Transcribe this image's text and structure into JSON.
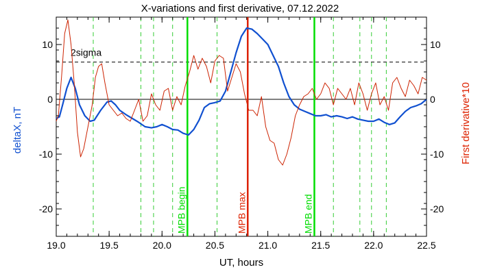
{
  "chart_data": {
    "type": "line",
    "title": "X-variations and first derivative, 07.12.2022",
    "xlabel": "UT, hours",
    "ylabel_left": "deltaX, nT",
    "ylabel_right": "First derivative*10",
    "xlim": [
      19.0,
      22.5
    ],
    "ylim": [
      -25,
      15
    ],
    "x_ticks": [
      "19.0",
      "19.5",
      "20.0",
      "20.5",
      "21.0",
      "21.5",
      "22.0",
      "22.5"
    ],
    "x_tick_values": [
      19.0,
      19.5,
      20.0,
      20.5,
      21.0,
      21.5,
      22.0,
      22.5
    ],
    "y_ticks": [
      "-20",
      "-10",
      "0",
      "10"
    ],
    "y_tick_values": [
      -20,
      -10,
      0,
      10
    ],
    "sigma_label": "2sigma",
    "sigma_level": 6.8,
    "vertical_dashed": [
      19.35,
      19.8,
      19.92,
      20.1,
      20.52,
      21.62,
      21.87,
      21.98,
      22.12
    ],
    "markers": [
      {
        "label": "MPB begin",
        "x": 20.24,
        "color": "#00dd00"
      },
      {
        "label": "MPB max",
        "x": 20.81,
        "color": "#dd2200"
      },
      {
        "label": "MPB end",
        "x": 21.44,
        "color": "#00dd00"
      }
    ],
    "series": [
      {
        "name": "deltaX, nT",
        "color": "#1050d0",
        "x": [
          19.0,
          19.03,
          19.06,
          19.1,
          19.14,
          19.18,
          19.22,
          19.27,
          19.32,
          19.36,
          19.42,
          19.48,
          19.52,
          19.56,
          19.6,
          19.66,
          19.72,
          19.78,
          19.84,
          19.9,
          19.95,
          20.0,
          20.05,
          20.1,
          20.15,
          20.2,
          20.25,
          20.3,
          20.35,
          20.4,
          20.45,
          20.5,
          20.55,
          20.6,
          20.65,
          20.7,
          20.75,
          20.8,
          20.85,
          20.9,
          20.95,
          21.0,
          21.05,
          21.1,
          21.15,
          21.2,
          21.25,
          21.3,
          21.35,
          21.4,
          21.45,
          21.5,
          21.55,
          21.6,
          21.65,
          21.7,
          21.75,
          21.8,
          21.85,
          21.9,
          21.95,
          22.0,
          22.05,
          22.1,
          22.15,
          22.2,
          22.25,
          22.3,
          22.35,
          22.4,
          22.45,
          22.5
        ],
        "values": [
          -3.5,
          -3.2,
          -1.0,
          2.0,
          4.0,
          2.0,
          -1.0,
          -3.0,
          -4.0,
          -3.8,
          -2.0,
          -0.5,
          -0.3,
          -1.0,
          -2.0,
          -2.8,
          -3.5,
          -4.2,
          -5.0,
          -5.2,
          -5.0,
          -4.6,
          -5.0,
          -5.5,
          -5.6,
          -6.2,
          -6.5,
          -5.5,
          -3.8,
          -1.5,
          -0.8,
          -0.6,
          -0.3,
          1.5,
          5.0,
          8.5,
          11.5,
          13.0,
          12.8,
          12.0,
          11.0,
          10.0,
          8.0,
          6.0,
          3.0,
          0.5,
          -1.0,
          -1.8,
          -2.2,
          -2.6,
          -3.0,
          -3.0,
          -2.8,
          -3.2,
          -3.0,
          -3.2,
          -3.5,
          -3.2,
          -3.6,
          -3.8,
          -4.0,
          -4.0,
          -3.6,
          -4.2,
          -4.6,
          -4.3,
          -3.2,
          -2.2,
          -1.5,
          -1.2,
          -0.8,
          0.0
        ]
      },
      {
        "name": "First derivative*10",
        "color": "#cc2200",
        "x": [
          19.0,
          19.02,
          19.05,
          19.08,
          19.11,
          19.14,
          19.17,
          19.2,
          19.23,
          19.26,
          19.3,
          19.34,
          19.37,
          19.4,
          19.43,
          19.46,
          19.5,
          19.54,
          19.58,
          19.62,
          19.66,
          19.7,
          19.74,
          19.78,
          19.82,
          19.86,
          19.9,
          19.94,
          19.98,
          20.02,
          20.06,
          20.1,
          20.14,
          20.18,
          20.22,
          20.26,
          20.3,
          20.34,
          20.38,
          20.42,
          20.46,
          20.5,
          20.54,
          20.58,
          20.62,
          20.66,
          20.7,
          20.74,
          20.78,
          20.82,
          20.86,
          20.9,
          20.94,
          20.98,
          21.02,
          21.06,
          21.1,
          21.14,
          21.18,
          21.22,
          21.26,
          21.3,
          21.34,
          21.38,
          21.42,
          21.46,
          21.5,
          21.54,
          21.58,
          21.62,
          21.66,
          21.7,
          21.74,
          21.78,
          21.82,
          21.86,
          21.9,
          21.94,
          21.98,
          22.02,
          22.06,
          22.1,
          22.14,
          22.18,
          22.22,
          22.26,
          22.3,
          22.34,
          22.38,
          22.42,
          22.46,
          22.5
        ],
        "values": [
          -4.0,
          -3.0,
          4.0,
          12.0,
          14.5,
          10.0,
          3.0,
          -6.0,
          -10.5,
          -9.0,
          -5.0,
          -1.0,
          4.0,
          6.0,
          6.5,
          3.0,
          -1.0,
          -2.0,
          -3.0,
          -2.5,
          -3.5,
          -4.0,
          -2.0,
          0.0,
          -4.0,
          -3.0,
          1.0,
          -1.0,
          -2.0,
          1.5,
          2.0,
          -2.0,
          0.5,
          -1.0,
          2.5,
          5.0,
          8.0,
          5.5,
          7.5,
          6.0,
          3.0,
          7.0,
          8.0,
          7.5,
          1.5,
          4.0,
          6.5,
          5.0,
          1.0,
          -2.0,
          -2.0,
          -3.0,
          0.5,
          -5.0,
          -7.5,
          -8.0,
          -11.0,
          -12.0,
          -10.0,
          -7.0,
          -3.0,
          -1.0,
          0.5,
          1.0,
          2.0,
          0.0,
          1.0,
          3.0,
          2.0,
          -1.0,
          2.0,
          1.0,
          0.0,
          2.0,
          -1.0,
          3.0,
          1.0,
          -2.0,
          1.0,
          3.0,
          -1.0,
          0.5,
          -2.0,
          3.0,
          4.0,
          2.0,
          0.5,
          3.5,
          2.5,
          1.0,
          4.0,
          3.5
        ]
      }
    ]
  }
}
